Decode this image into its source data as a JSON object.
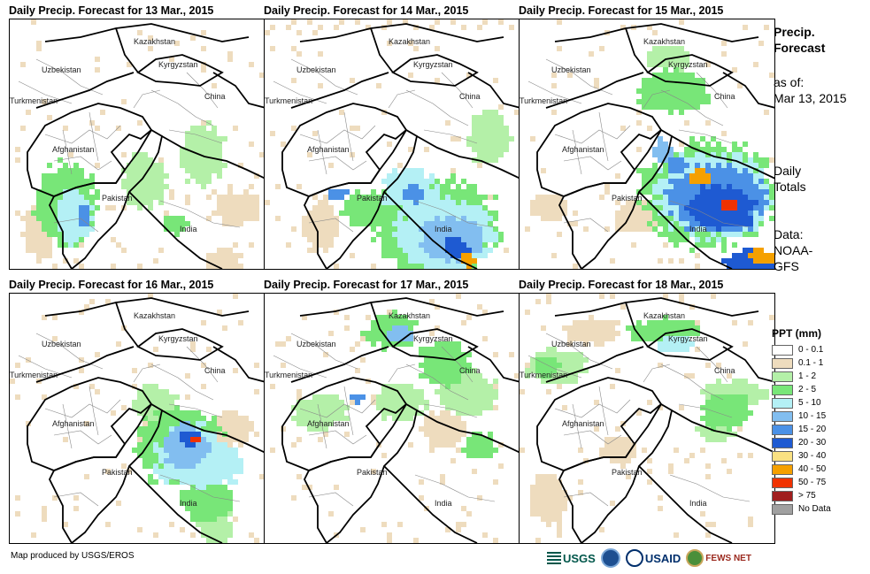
{
  "panels": [
    {
      "title": "Daily Precip. Forecast for 13 Mar., 2015"
    },
    {
      "title": "Daily Precip. Forecast for 14 Mar., 2015"
    },
    {
      "title": "Daily Precip. Forecast for 15 Mar., 2015"
    },
    {
      "title": "Daily Precip. Forecast for 16 Mar., 2015"
    },
    {
      "title": "Daily Precip. Forecast for 17 Mar., 2015"
    },
    {
      "title": "Daily Precip. Forecast for 18 Mar., 2015"
    }
  ],
  "country_labels": [
    "Kazakhstan",
    "Kyrgyzstan",
    "Uzbekistan",
    "Turkmenistan",
    "China",
    "Afghanistan",
    "Pakistan",
    "India"
  ],
  "side": {
    "title": "Precip. Forecast",
    "asof_label": "as of:",
    "asof_date": "Mar 13, 2015",
    "totals": "Daily Totals",
    "data_label": "Data:",
    "data_source": "NOAA-GFS"
  },
  "legend": {
    "title": "PPT (mm)",
    "items": [
      {
        "label": "0 - 0.1",
        "color": "#ffffff"
      },
      {
        "label": "0.1 - 1",
        "color": "#eedcbe"
      },
      {
        "label": "1 - 2",
        "color": "#b4f0a8"
      },
      {
        "label": "2 - 5",
        "color": "#78e678"
      },
      {
        "label": "5 - 10",
        "color": "#b4f0f5"
      },
      {
        "label": "10 - 15",
        "color": "#82bef0"
      },
      {
        "label": "15 - 20",
        "color": "#4b91e6"
      },
      {
        "label": "20 - 30",
        "color": "#1e5ad2"
      },
      {
        "label": "30 - 40",
        "color": "#fae182"
      },
      {
        "label": "40 - 50",
        "color": "#f5a000"
      },
      {
        "label": "50 - 75",
        "color": "#f03200"
      },
      {
        "label": "> 75",
        "color": "#a01e1e"
      },
      {
        "label": "No Data",
        "color": "#a0a0a0"
      }
    ]
  },
  "credit": "Map produced by USGS/EROS",
  "logos": {
    "usgs": "USGS",
    "usaid": "USAID",
    "fews": "FEWS NET"
  }
}
